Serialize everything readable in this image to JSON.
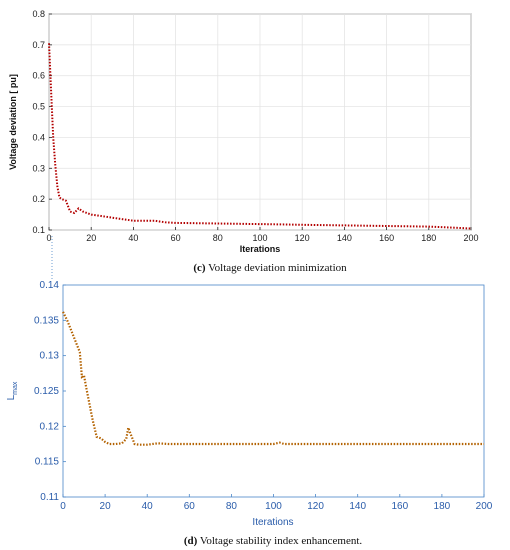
{
  "chart_data": [
    {
      "type": "line",
      "caption_letter": "(c)",
      "caption_text": " Voltage deviation minimization",
      "xlabel": "Iterations",
      "ylabel": "Voltage deviation [ pu]",
      "xlim": [
        0,
        200
      ],
      "ylim": [
        0.1,
        0.8
      ],
      "xticks": [
        "0",
        "20",
        "40",
        "60",
        "80",
        "100",
        "120",
        "140",
        "160",
        "180",
        "200"
      ],
      "yticks": [
        "0.1",
        "0.2",
        "0.3",
        "0.4",
        "0.5",
        "0.6",
        "0.7",
        "0.8"
      ],
      "grid": true,
      "series": [
        {
          "color": "#b30000",
          "x": [
            0,
            1,
            2,
            3,
            4,
            5,
            6,
            8,
            10,
            12,
            14,
            16,
            18,
            20,
            25,
            30,
            35,
            40,
            45,
            50,
            55,
            60,
            70,
            80,
            90,
            100,
            110,
            120,
            130,
            140,
            150,
            160,
            170,
            180,
            190,
            200
          ],
          "y": [
            0.705,
            0.55,
            0.4,
            0.31,
            0.24,
            0.205,
            0.2,
            0.195,
            0.16,
            0.155,
            0.17,
            0.16,
            0.155,
            0.15,
            0.145,
            0.14,
            0.135,
            0.13,
            0.13,
            0.13,
            0.125,
            0.123,
            0.122,
            0.121,
            0.12,
            0.119,
            0.118,
            0.117,
            0.116,
            0.115,
            0.114,
            0.113,
            0.112,
            0.111,
            0.108,
            0.105
          ]
        }
      ]
    },
    {
      "type": "line",
      "caption_letter": "(d)",
      "caption_text": " Voltage stability index enhancement.",
      "xlabel": "Iterations",
      "ylabel_main": "L",
      "ylabel_sub": "max",
      "xlim": [
        0,
        200
      ],
      "ylim": [
        0.11,
        0.14
      ],
      "xticks": [
        "0",
        "20",
        "40",
        "60",
        "80",
        "100",
        "120",
        "140",
        "160",
        "180",
        "200"
      ],
      "yticks": [
        "0.11",
        "0.115",
        "0.12",
        "0.125",
        "0.13",
        "0.135",
        "0.14"
      ],
      "grid": false,
      "series": [
        {
          "color": "#b36200",
          "x": [
            0,
            2,
            4,
            6,
            8,
            9,
            10,
            11,
            12,
            14,
            16,
            18,
            20,
            22,
            25,
            28,
            30,
            31,
            32,
            34,
            36,
            40,
            45,
            50,
            60,
            80,
            100,
            103,
            105,
            120,
            140,
            160,
            180,
            200
          ],
          "y": [
            0.1362,
            0.135,
            0.1335,
            0.132,
            0.1305,
            0.127,
            0.1272,
            0.1255,
            0.124,
            0.121,
            0.1185,
            0.1183,
            0.1178,
            0.1175,
            0.1175,
            0.1176,
            0.1182,
            0.1198,
            0.119,
            0.1175,
            0.1174,
            0.1174,
            0.1176,
            0.1175,
            0.1175,
            0.1175,
            0.1175,
            0.1177,
            0.1175,
            0.1175,
            0.1175,
            0.1175,
            0.1175,
            0.1175
          ]
        }
      ]
    }
  ]
}
